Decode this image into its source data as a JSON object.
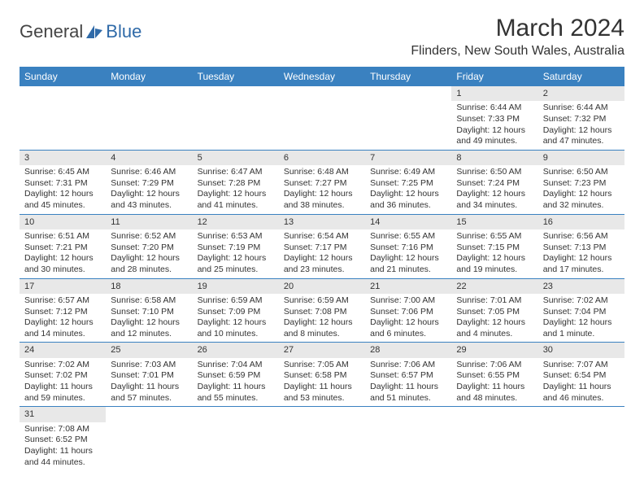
{
  "logo": {
    "text_a": "General",
    "text_b": "Blue"
  },
  "title": "March 2024",
  "location": "Flinders, New South Wales, Australia",
  "colors": {
    "header_bg": "#3a81c0",
    "header_fg": "#ffffff",
    "daynum_bg": "#e8e8e8",
    "row_border": "#3a81c0",
    "text": "#333333",
    "logo_blue": "#2f6aa8"
  },
  "weekdays": [
    "Sunday",
    "Monday",
    "Tuesday",
    "Wednesday",
    "Thursday",
    "Friday",
    "Saturday"
  ],
  "weeks": [
    [
      null,
      null,
      null,
      null,
      null,
      {
        "d": "1",
        "sr": "6:44 AM",
        "ss": "7:33 PM",
        "dl": "12 hours and 49 minutes."
      },
      {
        "d": "2",
        "sr": "6:44 AM",
        "ss": "7:32 PM",
        "dl": "12 hours and 47 minutes."
      }
    ],
    [
      {
        "d": "3",
        "sr": "6:45 AM",
        "ss": "7:31 PM",
        "dl": "12 hours and 45 minutes."
      },
      {
        "d": "4",
        "sr": "6:46 AM",
        "ss": "7:29 PM",
        "dl": "12 hours and 43 minutes."
      },
      {
        "d": "5",
        "sr": "6:47 AM",
        "ss": "7:28 PM",
        "dl": "12 hours and 41 minutes."
      },
      {
        "d": "6",
        "sr": "6:48 AM",
        "ss": "7:27 PM",
        "dl": "12 hours and 38 minutes."
      },
      {
        "d": "7",
        "sr": "6:49 AM",
        "ss": "7:25 PM",
        "dl": "12 hours and 36 minutes."
      },
      {
        "d": "8",
        "sr": "6:50 AM",
        "ss": "7:24 PM",
        "dl": "12 hours and 34 minutes."
      },
      {
        "d": "9",
        "sr": "6:50 AM",
        "ss": "7:23 PM",
        "dl": "12 hours and 32 minutes."
      }
    ],
    [
      {
        "d": "10",
        "sr": "6:51 AM",
        "ss": "7:21 PM",
        "dl": "12 hours and 30 minutes."
      },
      {
        "d": "11",
        "sr": "6:52 AM",
        "ss": "7:20 PM",
        "dl": "12 hours and 28 minutes."
      },
      {
        "d": "12",
        "sr": "6:53 AM",
        "ss": "7:19 PM",
        "dl": "12 hours and 25 minutes."
      },
      {
        "d": "13",
        "sr": "6:54 AM",
        "ss": "7:17 PM",
        "dl": "12 hours and 23 minutes."
      },
      {
        "d": "14",
        "sr": "6:55 AM",
        "ss": "7:16 PM",
        "dl": "12 hours and 21 minutes."
      },
      {
        "d": "15",
        "sr": "6:55 AM",
        "ss": "7:15 PM",
        "dl": "12 hours and 19 minutes."
      },
      {
        "d": "16",
        "sr": "6:56 AM",
        "ss": "7:13 PM",
        "dl": "12 hours and 17 minutes."
      }
    ],
    [
      {
        "d": "17",
        "sr": "6:57 AM",
        "ss": "7:12 PM",
        "dl": "12 hours and 14 minutes."
      },
      {
        "d": "18",
        "sr": "6:58 AM",
        "ss": "7:10 PM",
        "dl": "12 hours and 12 minutes."
      },
      {
        "d": "19",
        "sr": "6:59 AM",
        "ss": "7:09 PM",
        "dl": "12 hours and 10 minutes."
      },
      {
        "d": "20",
        "sr": "6:59 AM",
        "ss": "7:08 PM",
        "dl": "12 hours and 8 minutes."
      },
      {
        "d": "21",
        "sr": "7:00 AM",
        "ss": "7:06 PM",
        "dl": "12 hours and 6 minutes."
      },
      {
        "d": "22",
        "sr": "7:01 AM",
        "ss": "7:05 PM",
        "dl": "12 hours and 4 minutes."
      },
      {
        "d": "23",
        "sr": "7:02 AM",
        "ss": "7:04 PM",
        "dl": "12 hours and 1 minute."
      }
    ],
    [
      {
        "d": "24",
        "sr": "7:02 AM",
        "ss": "7:02 PM",
        "dl": "11 hours and 59 minutes."
      },
      {
        "d": "25",
        "sr": "7:03 AM",
        "ss": "7:01 PM",
        "dl": "11 hours and 57 minutes."
      },
      {
        "d": "26",
        "sr": "7:04 AM",
        "ss": "6:59 PM",
        "dl": "11 hours and 55 minutes."
      },
      {
        "d": "27",
        "sr": "7:05 AM",
        "ss": "6:58 PM",
        "dl": "11 hours and 53 minutes."
      },
      {
        "d": "28",
        "sr": "7:06 AM",
        "ss": "6:57 PM",
        "dl": "11 hours and 51 minutes."
      },
      {
        "d": "29",
        "sr": "7:06 AM",
        "ss": "6:55 PM",
        "dl": "11 hours and 48 minutes."
      },
      {
        "d": "30",
        "sr": "7:07 AM",
        "ss": "6:54 PM",
        "dl": "11 hours and 46 minutes."
      }
    ],
    [
      {
        "d": "31",
        "sr": "7:08 AM",
        "ss": "6:52 PM",
        "dl": "11 hours and 44 minutes."
      },
      null,
      null,
      null,
      null,
      null,
      null
    ]
  ],
  "labels": {
    "sunrise": "Sunrise: ",
    "sunset": "Sunset: ",
    "daylight": "Daylight: "
  }
}
